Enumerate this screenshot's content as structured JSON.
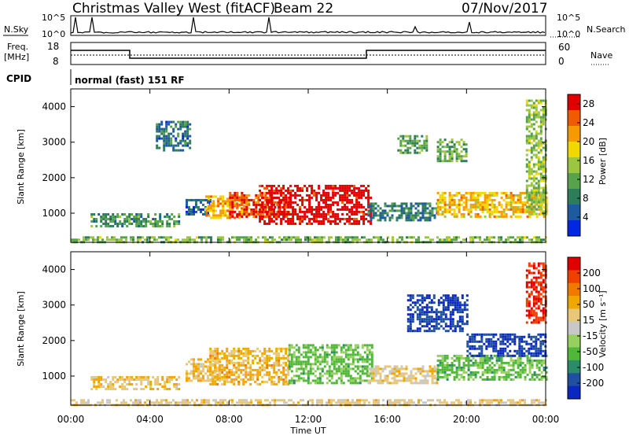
{
  "header": {
    "title": "Christmas Valley West (fitACF)",
    "beam": "Beam 22",
    "date": "07/Nov/2017"
  },
  "status_panels": {
    "nsky_label": "N.Sky",
    "nsearch_label": "N.Search",
    "noise_ticks": [
      "10^5",
      "10^0"
    ],
    "freq_label": "Freq.",
    "freq_unit": "[MHz]",
    "freq_ticks": [
      "18",
      "8"
    ],
    "nave_label": "Nave",
    "nave_ticks": [
      "60",
      "0"
    ],
    "cpid_label": "CPID",
    "cpid_value": "normal (fast) 151 RF"
  },
  "colors": {
    "power_scale": [
      "#0028e0",
      "#1e5aa0",
      "#2e7d5a",
      "#56a34c",
      "#9cc640",
      "#f0d800",
      "#f59a00",
      "#f05a00",
      "#e00000"
    ],
    "velocity_scale": [
      "#e00000",
      "#f04000",
      "#f07a00",
      "#f0a800",
      "#e8c878",
      "#c8c8c8",
      "#98d060",
      "#50b838",
      "#2a8c6a",
      "#1e4fa0",
      "#0a28c0"
    ]
  },
  "chart_data": [
    {
      "type": "heatmap",
      "title": "Power",
      "ylabel": "Slant Range [km]",
      "xlabel": "Time UT",
      "x_ticks": [
        "00:00",
        "04:00",
        "08:00",
        "12:00",
        "16:00",
        "20:00",
        "00:00"
      ],
      "xlim_hours": [
        0,
        24
      ],
      "y_ticks": [
        1000,
        2000,
        3000,
        4000
      ],
      "ylim_km": [
        180,
        4500
      ],
      "colorbar": {
        "label": "Power [dB]",
        "ticks": [
          4,
          8,
          12,
          16,
          20,
          24,
          28
        ],
        "range": [
          0,
          30
        ]
      },
      "echo_regions": [
        {
          "t": [
            1.0,
            5.5
          ],
          "range": [
            620,
            1000
          ],
          "value": 10
        },
        {
          "t": [
            5.8,
            7.0
          ],
          "range": [
            1000,
            1400
          ],
          "value": 6
        },
        {
          "t": [
            6.8,
            9.0
          ],
          "range": [
            900,
            1500
          ],
          "value": 21
        },
        {
          "t": [
            8.0,
            11.0
          ],
          "range": [
            900,
            1600
          ],
          "value": 26
        },
        {
          "t": [
            9.5,
            15.2
          ],
          "range": [
            700,
            1800
          ],
          "value": 30
        },
        {
          "t": [
            15.0,
            18.5
          ],
          "range": [
            800,
            1300
          ],
          "value": 8
        },
        {
          "t": [
            16.5,
            18.0
          ],
          "range": [
            2700,
            3200
          ],
          "value": 11
        },
        {
          "t": [
            18.5,
            24.0
          ],
          "range": [
            900,
            1600
          ],
          "value": 20
        },
        {
          "t": [
            18.5,
            20.0
          ],
          "range": [
            2500,
            3100
          ],
          "value": 12
        },
        {
          "t": [
            23.0,
            24.0
          ],
          "range": [
            1000,
            4200
          ],
          "value": 14
        },
        {
          "t": [
            4.3,
            6.0
          ],
          "range": [
            2800,
            3600
          ],
          "value": 7
        },
        {
          "t": [
            0.0,
            24.0
          ],
          "range": [
            180,
            350
          ],
          "value": 13
        }
      ]
    },
    {
      "type": "heatmap",
      "title": "Velocity",
      "ylabel": "Slant Range [km]",
      "xlabel": "Time UT",
      "x_ticks": [
        "00:00",
        "04:00",
        "08:00",
        "12:00",
        "16:00",
        "20:00",
        "00:00"
      ],
      "xlim_hours": [
        0,
        24
      ],
      "y_ticks": [
        1000,
        2000,
        3000,
        4000
      ],
      "ylim_km": [
        180,
        4500
      ],
      "colorbar": {
        "label": "Velocity [m s⁻¹]",
        "ticks": [
          200,
          100,
          50,
          15,
          -15,
          -50,
          -100,
          -200
        ],
        "range": [
          -250,
          250
        ]
      },
      "echo_regions": [
        {
          "t": [
            1.0,
            5.5
          ],
          "range": [
            620,
            1000
          ],
          "value": 60
        },
        {
          "t": [
            5.8,
            7.5
          ],
          "range": [
            900,
            1500
          ],
          "value": 60
        },
        {
          "t": [
            7.0,
            11.0
          ],
          "range": [
            800,
            1800
          ],
          "value": 80
        },
        {
          "t": [
            11.0,
            15.2
          ],
          "range": [
            800,
            1900
          ],
          "value": -80
        },
        {
          "t": [
            15.0,
            18.5
          ],
          "range": [
            800,
            1300
          ],
          "value": 40
        },
        {
          "t": [
            17.0,
            20.0
          ],
          "range": [
            2300,
            3300
          ],
          "value": -200
        },
        {
          "t": [
            18.5,
            24.0
          ],
          "range": [
            900,
            1600
          ],
          "value": -80
        },
        {
          "t": [
            20.0,
            24.0
          ],
          "range": [
            1600,
            2200
          ],
          "value": -200
        },
        {
          "t": [
            23.0,
            24.0
          ],
          "range": [
            2500,
            4200
          ],
          "value": 200
        },
        {
          "t": [
            0.0,
            24.0
          ],
          "range": [
            180,
            350
          ],
          "value": 40
        }
      ]
    }
  ]
}
